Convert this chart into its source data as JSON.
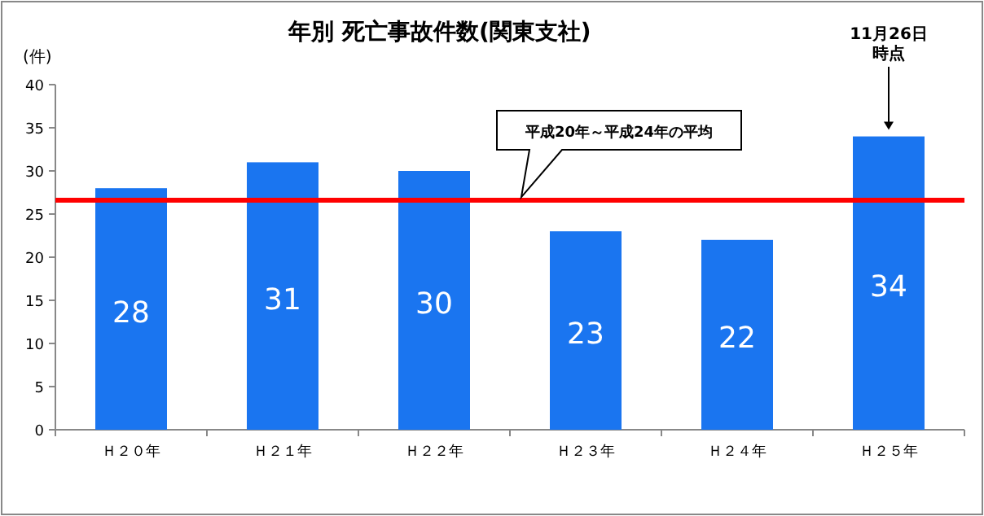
{
  "chart_data": {
    "type": "bar",
    "title": "年別  死亡事故件数(関東支社)",
    "ylabel": "(件)",
    "categories": [
      "Ｈ２０年",
      "Ｈ２１年",
      "Ｈ２２年",
      "Ｈ２３年",
      "Ｈ２４年",
      "Ｈ２５年"
    ],
    "values": [
      28,
      31,
      30,
      23,
      22,
      34
    ],
    "color": "#1a75f0",
    "data_labels": true,
    "ylim": [
      0,
      40
    ],
    "yticks": [
      0,
      5,
      10,
      15,
      20,
      25,
      30,
      35,
      40
    ],
    "ref_lines": [
      {
        "axis": "y",
        "value": 26.6,
        "color": "#ff0000"
      }
    ],
    "annotations": [
      "平成20年～平成24年の平均",
      {
        "text": "11月26日時点",
        "x": "Ｈ２５年",
        "y": 34
      }
    ]
  }
}
